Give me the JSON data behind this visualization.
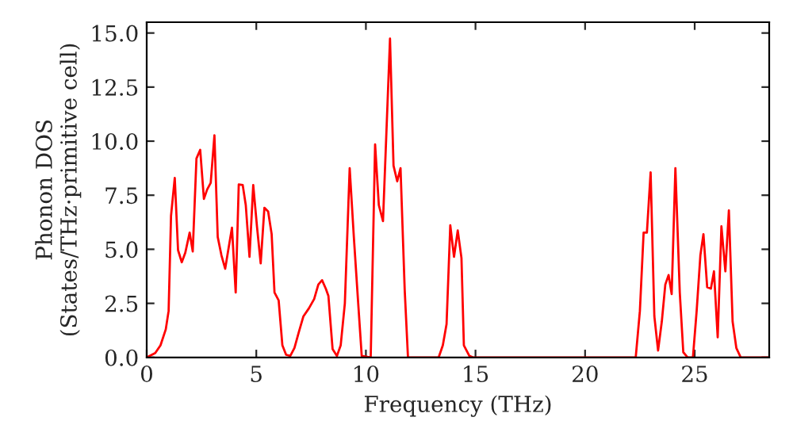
{
  "chart_data": {
    "type": "line",
    "xlabel": "Frequency (THz)",
    "ylabel": "Phonon DOS\n(States/THz·primitive cell)",
    "xlim": [
      0,
      28.4
    ],
    "ylim": [
      0,
      15.5
    ],
    "xticks": [
      0,
      5,
      10,
      15,
      20,
      25
    ],
    "yticks": [
      {
        "value": 0,
        "label": "0.0"
      },
      {
        "value": 2.5,
        "label": "2.5"
      },
      {
        "value": 5,
        "label": "5.0"
      },
      {
        "value": 7.5,
        "label": "7.5"
      },
      {
        "value": 10,
        "label": "10.0"
      },
      {
        "value": 12.5,
        "label": "12.5"
      },
      {
        "value": 15,
        "label": "15.0"
      }
    ],
    "grid": false,
    "line_style": "solid",
    "marker": "none",
    "series": [
      {
        "color": "#ff0000",
        "x": [
          0,
          0.39,
          0.63,
          0.87,
          1.0,
          1.11,
          1.28,
          1.43,
          1.6,
          1.76,
          1.96,
          2.1,
          2.27,
          2.44,
          2.61,
          2.76,
          2.92,
          3.09,
          3.24,
          3.41,
          3.58,
          3.72,
          3.89,
          4.06,
          4.2,
          4.38,
          4.52,
          4.69,
          4.86,
          5.03,
          5.2,
          5.37,
          5.54,
          5.7,
          5.83,
          6.02,
          6.19,
          6.36,
          6.55,
          6.74,
          6.94,
          7.15,
          7.4,
          7.64,
          7.83,
          8.0,
          8.17,
          8.29,
          8.48,
          8.68,
          8.85,
          9.04,
          9.26,
          9.45,
          9.64,
          9.81,
          10.22,
          10.42,
          10.59,
          10.78,
          11.1,
          11.26,
          11.43,
          11.58,
          11.77,
          11.92,
          13.32,
          13.51,
          13.68,
          13.85,
          14.02,
          14.19,
          14.36,
          14.47,
          14.72,
          14.89,
          22.31,
          22.5,
          22.67,
          22.82,
          22.99,
          23.16,
          23.33,
          23.5,
          23.66,
          23.81,
          23.95,
          24.12,
          24.32,
          24.48,
          24.68,
          24.92,
          25.09,
          25.26,
          25.4,
          25.57,
          25.74,
          25.88,
          26.05,
          26.22,
          26.4,
          26.56,
          26.73,
          26.9,
          27.1,
          28.4
        ],
        "values": [
          0,
          0.2,
          0.56,
          1.3,
          2.15,
          6.55,
          8.3,
          4.96,
          4.4,
          4.84,
          5.77,
          4.9,
          9.2,
          9.6,
          7.33,
          7.77,
          8.07,
          10.27,
          5.57,
          4.72,
          4.1,
          4.96,
          6.0,
          3.0,
          8.0,
          7.97,
          7.04,
          4.65,
          7.97,
          6.06,
          4.35,
          6.92,
          6.75,
          5.7,
          3.0,
          2.64,
          0.56,
          0.12,
          0.07,
          0.44,
          1.17,
          1.9,
          2.27,
          2.7,
          3.37,
          3.57,
          3.18,
          2.84,
          0.39,
          0.07,
          0.56,
          2.5,
          8.75,
          5.57,
          2.64,
          0.07,
          0,
          9.85,
          7.04,
          6.3,
          14.74,
          8.87,
          8.14,
          8.75,
          3.13,
          0,
          0,
          0.56,
          1.54,
          6.11,
          4.65,
          5.87,
          4.6,
          0.56,
          0.07,
          0,
          0,
          2.15,
          5.77,
          5.77,
          8.56,
          1.9,
          0.32,
          1.66,
          3.37,
          3.81,
          2.93,
          8.75,
          3.0,
          0.24,
          0,
          0,
          2.15,
          4.72,
          5.7,
          3.25,
          3.18,
          3.98,
          0.93,
          6.06,
          3.98,
          6.8,
          1.66,
          0.44,
          0,
          0
        ]
      }
    ]
  }
}
